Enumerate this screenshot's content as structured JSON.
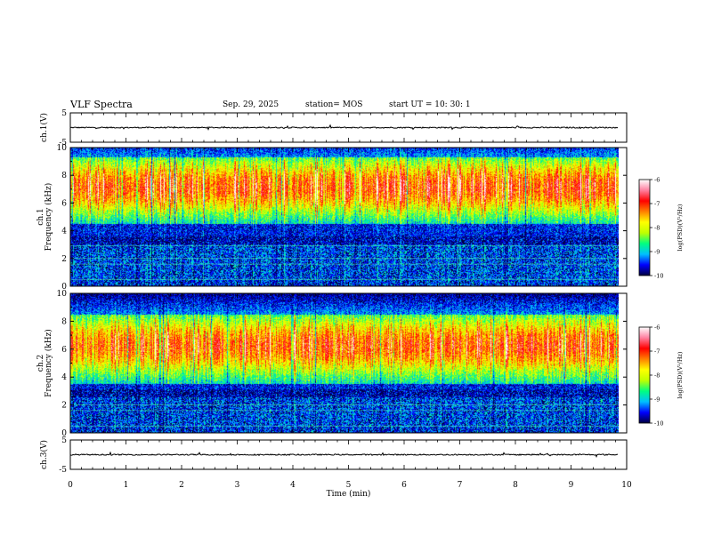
{
  "header": {
    "title": "VLF Spectra",
    "date": "Sep. 29, 2025",
    "station": "station= MOS",
    "start": "start  UT =   10: 30: 1"
  },
  "colorbar": {
    "label": "log(PSD)(V²/Hz)",
    "ticks": [
      "-6",
      "-7",
      "-8",
      "-9",
      "-10"
    ],
    "range": [
      -10,
      -6
    ],
    "colors": [
      "#000040",
      "#0000ff",
      "#00c0ff",
      "#00ff80",
      "#c0ff00",
      "#ffff00",
      "#ff8000",
      "#ff0000",
      "#ff80a0",
      "#ffffff"
    ]
  },
  "chart_data": [
    {
      "type": "line",
      "id": "ch1-waveform",
      "ylabel": "ch.1(V)",
      "x_range": [
        0,
        10
      ],
      "ylim": [
        -5,
        5
      ],
      "y_ticks": [
        "5",
        "-5"
      ],
      "baseline": 0,
      "color": "#000000"
    },
    {
      "type": "heatmap",
      "id": "ch1-spectrogram",
      "ylabel": "ch.1\nFrequency (kHz)",
      "x_range": [
        0,
        9.85
      ],
      "ylim": [
        0,
        10
      ],
      "y_ticks": [
        "0",
        "2",
        "4",
        "6",
        "8",
        "10"
      ],
      "z_range": [
        -10,
        -6
      ],
      "emission_bands_khz": [
        [
          5.5,
          8.8
        ],
        [
          0.3,
          3.0
        ]
      ],
      "noise_lines_khz": [
        0.5,
        1.6,
        2.0,
        2.9
      ]
    },
    {
      "type": "heatmap",
      "id": "ch2-spectrogram",
      "ylabel": "ch.2\nFrequency (kHz)",
      "x_range": [
        0,
        9.85
      ],
      "ylim": [
        0,
        10
      ],
      "y_ticks": [
        "0",
        "2",
        "4",
        "6",
        "8",
        "10"
      ],
      "z_range": [
        -10,
        -6
      ],
      "emission_bands_khz": [
        [
          4.5,
          8.0
        ],
        [
          0.3,
          2.5
        ]
      ],
      "noise_lines_khz": [
        0.5,
        1.6,
        2.0
      ]
    },
    {
      "type": "line",
      "id": "ch3-waveform",
      "ylabel": "ch.3(V)",
      "x_range": [
        0,
        10
      ],
      "ylim": [
        -5,
        5
      ],
      "y_ticks": [
        "5",
        "-5"
      ],
      "baseline": 0,
      "color": "#000000"
    }
  ],
  "x_axis": {
    "label": "Time  (min)",
    "range": [
      0,
      10
    ],
    "ticks": [
      "0",
      "1",
      "2",
      "3",
      "4",
      "5",
      "6",
      "7",
      "8",
      "9",
      "10"
    ]
  }
}
